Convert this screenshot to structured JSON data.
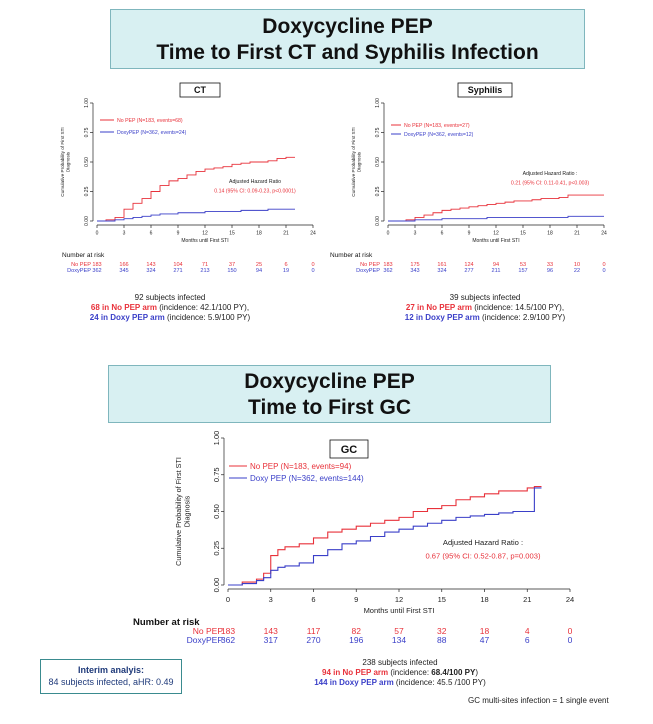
{
  "banner_top": {
    "line1": "Doxycycline PEP",
    "line2": "Time to First CT and Syphilis Infection"
  },
  "banner_gc": {
    "line1": "Doxycycline PEP",
    "line2": "Time to First GC"
  },
  "colors": {
    "nopep": "#e8313a",
    "doxy": "#3a3fc8"
  },
  "chart_data": [
    {
      "type": "line",
      "title": "CT",
      "ylabel": "Cumulative Probability of First STI Diagnosis",
      "xlabel": "Months until First STI",
      "xlim": [
        0,
        24
      ],
      "ylim": [
        0,
        1
      ],
      "xticks": [
        "0",
        "3",
        "6",
        "9",
        "12",
        "15",
        "18",
        "21",
        "24"
      ],
      "yticks": [
        "0.00",
        "0.25",
        "0.50",
        "0.75",
        "1.00"
      ],
      "legend": [
        "No PEP (N=183, events=68)",
        "DoxyPEP (N=362, events=24)"
      ],
      "annotation": [
        "Adjusted Hazard Ratio",
        "0.14 (95% CI: 0.09-0.23, p<0.0001)"
      ],
      "series": [
        {
          "name": "No PEP",
          "x": [
            0,
            1,
            2,
            3,
            4,
            5,
            6,
            7,
            8,
            9,
            10,
            11,
            12,
            13,
            14,
            15,
            16,
            17,
            18,
            19,
            20,
            21,
            22
          ],
          "y": [
            0,
            0.01,
            0.03,
            0.1,
            0.15,
            0.19,
            0.25,
            0.3,
            0.34,
            0.36,
            0.39,
            0.42,
            0.44,
            0.45,
            0.46,
            0.48,
            0.49,
            0.5,
            0.5,
            0.51,
            0.53,
            0.54,
            0.54
          ]
        },
        {
          "name": "DoxyPEP",
          "x": [
            0,
            1,
            2,
            3,
            4,
            5,
            6,
            7,
            8,
            9,
            10,
            11,
            12,
            13,
            14,
            15,
            16,
            17,
            18,
            19,
            20,
            21,
            22
          ],
          "y": [
            0,
            0,
            0.01,
            0.02,
            0.03,
            0.04,
            0.05,
            0.06,
            0.06,
            0.07,
            0.07,
            0.07,
            0.08,
            0.08,
            0.08,
            0.08,
            0.09,
            0.09,
            0.09,
            0.1,
            0.1,
            0.1,
            0.1
          ]
        }
      ],
      "risk": {
        "header": "Number at risk",
        "rows": [
          {
            "label": "No PEP",
            "values": [
              "183",
              "166",
              "143",
              "104",
              "71",
              "37",
              "25",
              "6",
              "0"
            ]
          },
          {
            "label": "DoxyPEP",
            "values": [
              "362",
              "345",
              "324",
              "271",
              "213",
              "150",
              "94",
              "19",
              "0"
            ]
          }
        ]
      },
      "summary": {
        "total": "92 subjects infected",
        "line_red_bold": "68 in No PEP arm",
        "line_red_rest": " (incidence: 42.1/100 PY),",
        "line_blue_bold": "24 in Doxy PEP arm",
        "line_blue_rest": " (incidence: 5.9/100 PY)"
      }
    },
    {
      "type": "line",
      "title": "Syphilis",
      "ylabel": "Cumulative Probability of First STI Diagnosis",
      "xlabel": "Months until First STI",
      "xlim": [
        0,
        24
      ],
      "ylim": [
        0,
        1
      ],
      "xticks": [
        "0",
        "3",
        "6",
        "9",
        "12",
        "15",
        "18",
        "21",
        "24"
      ],
      "yticks": [
        "0.00",
        "0.25",
        "0.50",
        "0.75",
        "1.00"
      ],
      "legend": [
        "No PEP (N=183, events=27)",
        "DoxyPEP (N=362, events=12)"
      ],
      "annotation": [
        "Adjusted Hazard Ratio :",
        "0.21 (95% CI: 0.11-0.41, p<0.003)"
      ],
      "series": [
        {
          "name": "No PEP",
          "x": [
            0,
            1,
            2,
            3,
            4,
            5,
            6,
            7,
            8,
            9,
            10,
            11,
            12,
            13,
            14,
            15,
            16,
            17,
            18,
            19,
            20,
            21,
            22,
            23,
            24
          ],
          "y": [
            0,
            0,
            0.01,
            0.03,
            0.05,
            0.07,
            0.09,
            0.1,
            0.11,
            0.12,
            0.13,
            0.14,
            0.15,
            0.16,
            0.17,
            0.17,
            0.18,
            0.19,
            0.19,
            0.2,
            0.22,
            0.22,
            0.22,
            0.22,
            0.22
          ]
        },
        {
          "name": "DoxyPEP",
          "x": [
            0,
            1,
            2,
            3,
            4,
            5,
            6,
            7,
            8,
            9,
            10,
            11,
            12,
            13,
            14,
            15,
            16,
            17,
            18,
            19,
            20,
            21,
            22,
            23,
            24
          ],
          "y": [
            0,
            0,
            0,
            0.01,
            0.01,
            0.01,
            0.02,
            0.02,
            0.02,
            0.02,
            0.02,
            0.03,
            0.03,
            0.03,
            0.03,
            0.03,
            0.03,
            0.03,
            0.03,
            0.03,
            0.04,
            0.04,
            0.04,
            0.04,
            0.04
          ]
        }
      ],
      "risk": {
        "header": "Number at risk",
        "rows": [
          {
            "label": "No PEP",
            "values": [
              "183",
              "175",
              "161",
              "124",
              "94",
              "53",
              "33",
              "10",
              "0"
            ]
          },
          {
            "label": "DoxyPEP",
            "values": [
              "362",
              "343",
              "324",
              "277",
              "211",
              "157",
              "96",
              "22",
              "0"
            ]
          }
        ]
      },
      "summary": {
        "total": "39 subjects infected",
        "line_red_bold": "27 in No PEP arm",
        "line_red_rest": " (incidence: 14.5/100 PY),",
        "line_blue_bold": "12 in Doxy PEP arm",
        "line_blue_rest": " (incidence: 2.9/100 PY)"
      }
    },
    {
      "type": "line",
      "title": "GC",
      "ylabel": "Cumulative Probability of First STI Diagnosis",
      "xlabel": "Months until First STI",
      "xlim": [
        0,
        24
      ],
      "ylim": [
        0,
        1
      ],
      "xticks": [
        "0",
        "3",
        "6",
        "9",
        "12",
        "15",
        "18",
        "21",
        "24"
      ],
      "yticks": [
        "0.00",
        "0.25",
        "0.50",
        "0.75",
        "1.00"
      ],
      "legend": [
        "No PEP (N=183, events=94)",
        "Doxy PEP (N=362, events=144)"
      ],
      "annotation": [
        "Adjusted Hazard Ratio :",
        "0.67 (95% CI: 0.52-0.87, p=0.003)"
      ],
      "series": [
        {
          "name": "No PEP",
          "x": [
            0,
            1,
            2,
            2.5,
            3,
            3.5,
            4,
            5,
            6,
            7,
            8,
            9,
            10,
            11,
            12,
            13,
            14,
            15,
            16,
            17,
            18,
            19,
            20,
            21,
            21.5,
            22
          ],
          "y": [
            0,
            0.02,
            0.04,
            0.08,
            0.2,
            0.24,
            0.26,
            0.28,
            0.32,
            0.36,
            0.38,
            0.4,
            0.42,
            0.44,
            0.46,
            0.5,
            0.52,
            0.54,
            0.58,
            0.6,
            0.62,
            0.64,
            0.64,
            0.66,
            0.67,
            0.67
          ]
        },
        {
          "name": "Doxy PEP",
          "x": [
            0,
            1,
            2,
            2.5,
            3,
            3.5,
            4,
            5,
            6,
            7,
            8,
            9,
            10,
            11,
            12,
            13,
            14,
            15,
            16,
            17,
            18,
            19,
            20,
            21,
            21.5,
            22
          ],
          "y": [
            0,
            0.01,
            0.03,
            0.05,
            0.1,
            0.12,
            0.13,
            0.15,
            0.2,
            0.24,
            0.28,
            0.3,
            0.33,
            0.36,
            0.38,
            0.4,
            0.42,
            0.44,
            0.46,
            0.47,
            0.48,
            0.49,
            0.5,
            0.5,
            0.66,
            0.66
          ]
        }
      ],
      "risk": {
        "header": "Number at risk",
        "rows": [
          {
            "label": "No PEP",
            "values": [
              "183",
              "143",
              "117",
              "82",
              "57",
              "32",
              "18",
              "4",
              "0"
            ]
          },
          {
            "label": "DoxyPEP",
            "values": [
              "362",
              "317",
              "270",
              "196",
              "134",
              "88",
              "47",
              "6",
              "0"
            ]
          }
        ]
      },
      "summary": {
        "total": "238 subjects infected",
        "line_red_bold": "94 in No PEP arm",
        "line_red_rest_pre": " (incidence: ",
        "line_red_rest_bold": "68.4/100 PY",
        "line_red_rest_post": ")",
        "line_blue_bold": "144 in Doxy PEP arm",
        "line_blue_rest": " (incidence: 45.5 /100 PY)"
      }
    }
  ],
  "interim": {
    "title": "Interim analyis:",
    "text": "84 subjects infected, aHR: 0.49"
  },
  "footnote": "GC multi-sites infection = 1 single event"
}
